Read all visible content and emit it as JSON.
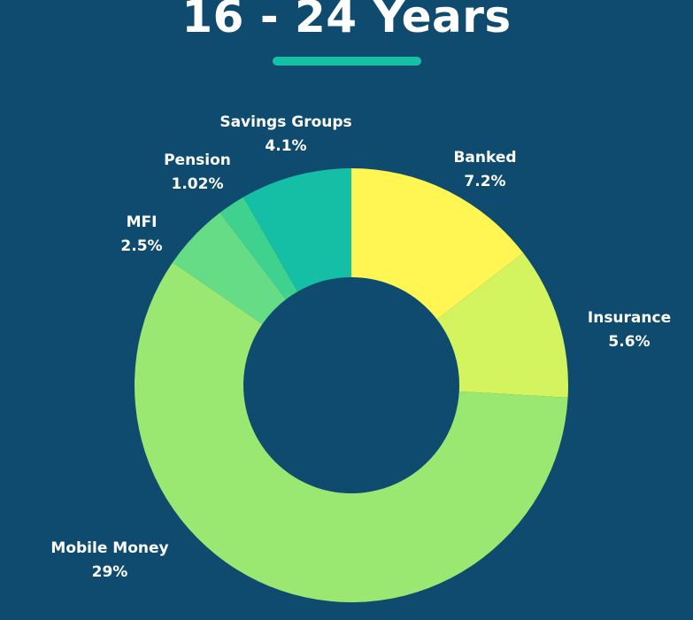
{
  "colors": {
    "background": "#0f4b6e",
    "title_underline": "#16c0a6"
  },
  "chart_data": {
    "type": "pie",
    "title": "16 - 24 Years",
    "donut": true,
    "legend": "none",
    "slices": [
      {
        "label": "Banked",
        "value_label": "7.2%",
        "value": 7.2,
        "color": "#fff653"
      },
      {
        "label": "Insurance",
        "value_label": "5.6%",
        "value": 5.6,
        "color": "#d3f35f"
      },
      {
        "label": "Mobile Money",
        "value_label": "29%",
        "value": 29,
        "color": "#9ae872"
      },
      {
        "label": "MFI",
        "value_label": "2.5%",
        "value": 2.5,
        "color": "#66dc87"
      },
      {
        "label": "Pension",
        "value_label": "1.02%",
        "value": 1.02,
        "color": "#3fd28f"
      },
      {
        "label": "Savings Groups",
        "value_label": "4.1%",
        "value": 4.1,
        "color": "#14bfa5"
      }
    ]
  }
}
